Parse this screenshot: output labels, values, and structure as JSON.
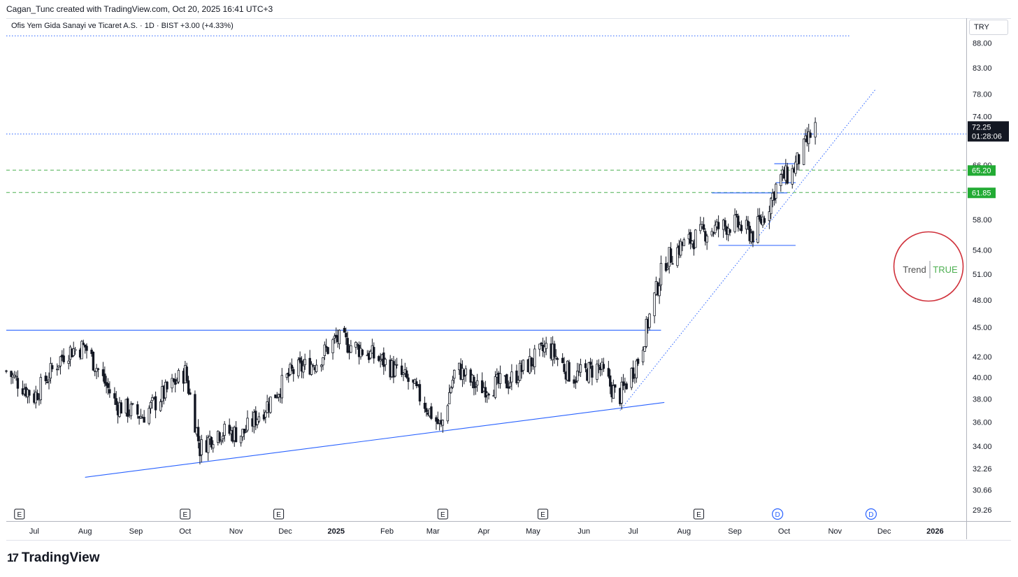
{
  "header": {
    "attribution": "Cagan_Tunc created with TradingView.com, Oct 20, 2025 16:41 UTC+3"
  },
  "legend": {
    "symbol": "Ofis Yem Gida Sanayi ve Ticaret A.S. · 1D · BIST",
    "change": "+3.00 (+4.33%)"
  },
  "currency": "TRY",
  "logo": {
    "text": "TradingView"
  },
  "colors": {
    "up": "#ffffff",
    "down": "#131722",
    "line": "#2962ff",
    "level": "#089981",
    "circle": "#d0313b"
  },
  "chart_data": {
    "type": "candlestick",
    "scale": "log",
    "ylim": [
      28.5,
      93
    ],
    "y_ticks": [
      "88.00",
      "83.00",
      "78.00",
      "74.00",
      "66.00",
      "58.00",
      "54.00",
      "51.00",
      "48.00",
      "45.00",
      "42.00",
      "40.00",
      "38.00",
      "36.00",
      "34.00",
      "32.26",
      "30.66",
      "29.26"
    ],
    "x_ticks": [
      "Jul",
      "Aug",
      "Sep",
      "Oct",
      "Nov",
      "Dec",
      "2025",
      "Feb",
      "Mar",
      "Apr",
      "May",
      "Jun",
      "Jul",
      "Aug",
      "Sep",
      "Oct",
      "Nov",
      "Dec",
      "2026"
    ],
    "x_range": [
      "2024-06-14",
      "2026-01-20"
    ],
    "price_labels": [
      {
        "value": "72.25",
        "sub": "01:28:06",
        "y": 71.5,
        "kind": "last"
      },
      {
        "value": "65.20",
        "y": 65.2,
        "kind": "level"
      },
      {
        "value": "61.85",
        "y": 61.85,
        "kind": "level"
      }
    ],
    "lines": [
      {
        "from": [
          "2024-08-01",
          31.6
        ],
        "to": [
          "2025-07-20",
          37.7
        ],
        "style": "solid"
      },
      {
        "from": [
          "2024-06-14",
          44.7
        ],
        "to": [
          "2025-07-18",
          44.7
        ],
        "style": "solid"
      },
      {
        "from": [
          "2025-06-23",
          37.0
        ],
        "to": [
          "2025-11-26",
          79.0
        ],
        "style": "dotted"
      },
      {
        "from": [
          "2024-06-14",
          89.5
        ],
        "to": [
          "2025-11-10",
          89.5
        ],
        "style": "dotted"
      },
      {
        "from": [
          "2024-06-14",
          71.0
        ],
        "to": [
          "2026-01-20",
          71.0
        ],
        "style": "dotted"
      },
      {
        "from": [
          "2024-06-14",
          65.2
        ],
        "to": [
          "2026-01-20",
          65.2
        ],
        "style": "dashed-green"
      },
      {
        "from": [
          "2024-06-14",
          61.85
        ],
        "to": [
          "2026-01-20",
          61.85
        ],
        "style": "dashed-green"
      },
      {
        "from": [
          "2025-08-22",
          54.6
        ],
        "to": [
          "2025-10-08",
          54.6
        ],
        "style": "solid"
      },
      {
        "from": [
          "2025-08-18",
          61.8
        ],
        "to": [
          "2025-10-03",
          61.8
        ],
        "style": "solid"
      },
      {
        "from": [
          "2025-09-25",
          66.2
        ],
        "to": [
          "2025-10-09",
          66.2
        ],
        "style": "solid"
      },
      {
        "from": [
          "2025-09-26",
          63.3
        ],
        "to": [
          "2025-10-08",
          63.3
        ],
        "style": "solid"
      },
      {
        "from": [
          "2025-10-13",
          71.0
        ],
        "to": [
          "2025-10-19",
          71.0
        ],
        "style": "solid"
      }
    ],
    "events": [
      {
        "date": "2024-06-22",
        "label": "E"
      },
      {
        "date": "2024-10-01",
        "label": "E"
      },
      {
        "date": "2024-11-27",
        "label": "E"
      },
      {
        "date": "2025-03-07",
        "label": "E"
      },
      {
        "date": "2025-05-07",
        "label": "E"
      },
      {
        "date": "2025-08-10",
        "label": "E"
      },
      {
        "date": "2025-09-27",
        "label": "D"
      },
      {
        "date": "2025-11-23",
        "label": "D"
      }
    ],
    "anchors": [
      [
        "2024-06-14",
        40.6
      ],
      [
        "2024-07-01",
        38.2
      ],
      [
        "2024-07-20",
        42.5
      ],
      [
        "2024-08-01",
        43.0
      ],
      [
        "2024-08-20",
        37.5
      ],
      [
        "2024-09-05",
        36.5
      ],
      [
        "2024-09-20",
        38.8
      ],
      [
        "2024-10-01",
        40.5
      ],
      [
        "2024-10-10",
        33.8
      ],
      [
        "2024-10-20",
        35.2
      ],
      [
        "2024-11-05",
        35.0
      ],
      [
        "2024-11-20",
        37.5
      ],
      [
        "2024-12-05",
        40.5
      ],
      [
        "2024-12-20",
        41.5
      ],
      [
        "2025-01-01",
        43.8
      ],
      [
        "2025-01-15",
        42.8
      ],
      [
        "2025-01-30",
        41.5
      ],
      [
        "2025-02-15",
        39.5
      ],
      [
        "2025-03-01",
        36.5
      ],
      [
        "2025-03-06",
        35.5
      ],
      [
        "2025-03-15",
        41.0
      ],
      [
        "2025-03-28",
        39.0
      ],
      [
        "2025-04-15",
        39.5
      ],
      [
        "2025-04-30",
        41.5
      ],
      [
        "2025-05-10",
        43.0
      ],
      [
        "2025-05-25",
        40.0
      ],
      [
        "2025-06-10",
        41.0
      ],
      [
        "2025-06-22",
        38.0
      ],
      [
        "2025-07-05",
        42.0
      ],
      [
        "2025-07-20",
        52.5
      ],
      [
        "2025-07-30",
        54.5
      ],
      [
        "2025-08-15",
        56.5
      ],
      [
        "2025-09-01",
        57.5
      ],
      [
        "2025-09-12",
        56.0
      ],
      [
        "2025-09-20",
        59.0
      ],
      [
        "2025-09-28",
        64.0
      ],
      [
        "2025-10-05",
        64.5
      ],
      [
        "2025-10-12",
        68.0
      ],
      [
        "2025-10-17",
        70.8
      ],
      [
        "2025-10-20",
        72.25
      ]
    ]
  }
}
